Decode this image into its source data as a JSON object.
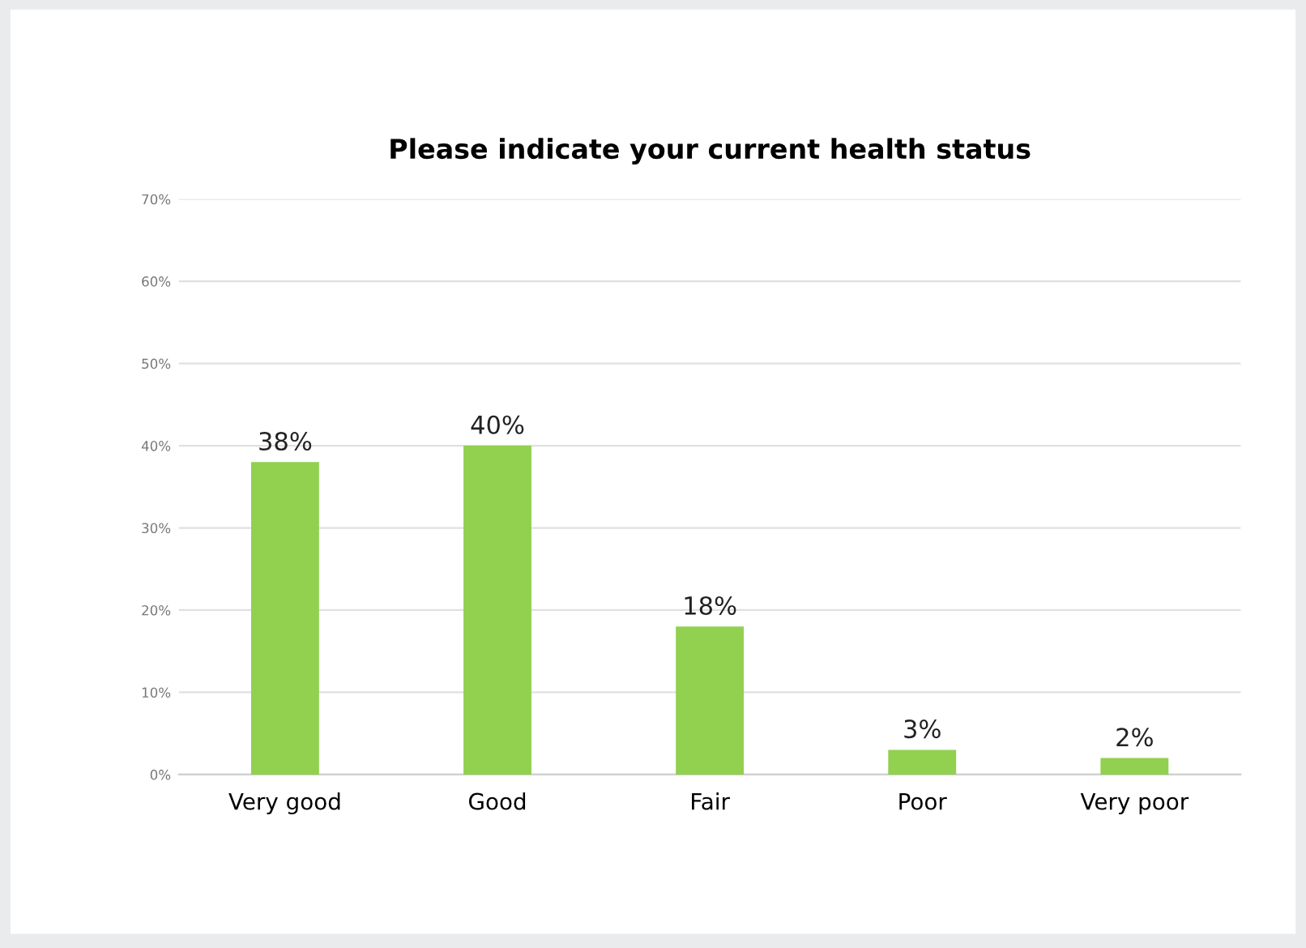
{
  "chart_data": {
    "type": "bar",
    "title": "Please indicate your current health status",
    "categories": [
      "Very good",
      "Good",
      "Fair",
      "Poor",
      "Very poor"
    ],
    "values": [
      38,
      40,
      18,
      3,
      2
    ],
    "value_labels": [
      "38%",
      "40%",
      "18%",
      "3%",
      "2%"
    ],
    "color": "#92d050",
    "ylim": [
      0,
      70
    ],
    "yticks": [
      {
        "value": 0,
        "label": "0%"
      },
      {
        "value": 10,
        "label": "10%"
      },
      {
        "value": 20,
        "label": "20%"
      },
      {
        "value": 30,
        "label": "30%"
      },
      {
        "value": 40,
        "label": "40%"
      },
      {
        "value": 50,
        "label": "50%"
      },
      {
        "value": 60,
        "label": "60%"
      },
      {
        "value": 70,
        "label": "70%"
      }
    ],
    "grid": "y"
  }
}
